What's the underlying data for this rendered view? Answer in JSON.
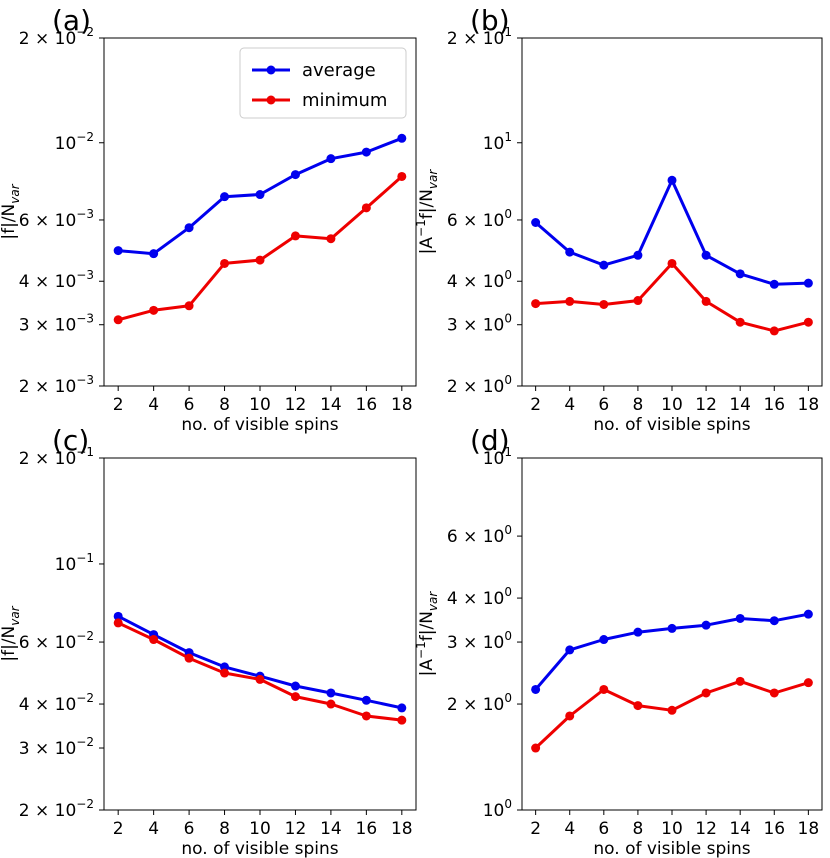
{
  "chart_data": [
    {
      "type": "line",
      "panel_label": "(a)",
      "scale": "log",
      "ylim": [
        0.002,
        0.02
      ],
      "x": [
        2,
        4,
        6,
        8,
        10,
        12,
        14,
        16,
        18
      ],
      "xlabel": "no. of visible spins",
      "ylabel": "|f|/N_var",
      "ylabel_main": "|f|/N",
      "ylabel_sub": "var",
      "yticks": [
        {
          "value": 0.002,
          "mant": "2 × 10",
          "exp": "−3"
        },
        {
          "value": 0.003,
          "mant": "3 × 10",
          "exp": "−3"
        },
        {
          "value": 0.004,
          "mant": "4 × 10",
          "exp": "−3"
        },
        {
          "value": 0.006,
          "mant": "6 × 10",
          "exp": "−3"
        },
        {
          "value": 0.01,
          "mant": "10",
          "exp": "−2"
        },
        {
          "value": 0.02,
          "mant": "2 × 10",
          "exp": "−2"
        }
      ],
      "xticks": [
        "2",
        "4",
        "6",
        "8",
        "10",
        "12",
        "14",
        "16",
        "18"
      ],
      "legend": {
        "position": "top-right",
        "entries": [
          "average",
          "minimum"
        ]
      },
      "series": [
        {
          "name": "average",
          "color": "#0000ee",
          "values": [
            0.0049,
            0.0048,
            0.0057,
            0.007,
            0.0071,
            0.0081,
            0.009,
            0.0094,
            0.0103
          ]
        },
        {
          "name": "minimum",
          "color": "#ee0000",
          "values": [
            0.0031,
            0.0033,
            0.0034,
            0.0045,
            0.0046,
            0.0054,
            0.0053,
            0.0065,
            0.008
          ]
        }
      ]
    },
    {
      "type": "line",
      "panel_label": "(b)",
      "scale": "log",
      "ylim": [
        2,
        20
      ],
      "x": [
        2,
        4,
        6,
        8,
        10,
        12,
        14,
        16,
        18
      ],
      "xlabel": "no. of visible spins",
      "ylabel": "|A^-1 f|/N_var",
      "ylabel_main": "|A",
      "ylabel_sup": "−1",
      "ylabel_mid": "f|/N",
      "ylabel_sub": "var",
      "yticks": [
        {
          "value": 2,
          "mant": "2 × 10",
          "exp": "0"
        },
        {
          "value": 3,
          "mant": "3 × 10",
          "exp": "0"
        },
        {
          "value": 4,
          "mant": "4 × 10",
          "exp": "0"
        },
        {
          "value": 6,
          "mant": "6 × 10",
          "exp": "0"
        },
        {
          "value": 10,
          "mant": "10",
          "exp": "1"
        },
        {
          "value": 20,
          "mant": "2 × 10",
          "exp": "1"
        }
      ],
      "xticks": [
        "2",
        "4",
        "6",
        "8",
        "10",
        "12",
        "14",
        "16",
        "18"
      ],
      "series": [
        {
          "name": "average",
          "color": "#0000ee",
          "values": [
            5.9,
            4.85,
            4.45,
            4.75,
            7.8,
            4.75,
            4.2,
            3.92,
            3.95
          ]
        },
        {
          "name": "minimum",
          "color": "#ee0000",
          "values": [
            3.45,
            3.5,
            3.43,
            3.52,
            4.5,
            3.5,
            3.05,
            2.88,
            3.05
          ]
        }
      ]
    },
    {
      "type": "line",
      "panel_label": "(c)",
      "scale": "log",
      "ylim": [
        0.02,
        0.2
      ],
      "x": [
        2,
        4,
        6,
        8,
        10,
        12,
        14,
        16,
        18
      ],
      "xlabel": "no. of visible spins",
      "ylabel": "|f|/N_var",
      "ylabel_main": "|f|/N",
      "ylabel_sub": "var",
      "yticks": [
        {
          "value": 0.02,
          "mant": "2 × 10",
          "exp": "−2"
        },
        {
          "value": 0.03,
          "mant": "3 × 10",
          "exp": "−2"
        },
        {
          "value": 0.04,
          "mant": "4 × 10",
          "exp": "−2"
        },
        {
          "value": 0.06,
          "mant": "6 × 10",
          "exp": "−2"
        },
        {
          "value": 0.1,
          "mant": "10",
          "exp": "−1"
        },
        {
          "value": 0.2,
          "mant": "2 × 10",
          "exp": "−1"
        }
      ],
      "xticks": [
        "2",
        "4",
        "6",
        "8",
        "10",
        "12",
        "14",
        "16",
        "18"
      ],
      "series": [
        {
          "name": "average",
          "color": "#0000ee",
          "values": [
            0.071,
            0.063,
            0.056,
            0.051,
            0.048,
            0.045,
            0.043,
            0.041,
            0.039
          ]
        },
        {
          "name": "minimum",
          "color": "#ee0000",
          "values": [
            0.068,
            0.061,
            0.054,
            0.049,
            0.047,
            0.042,
            0.04,
            0.037,
            0.036
          ]
        }
      ]
    },
    {
      "type": "line",
      "panel_label": "(d)",
      "scale": "log",
      "ylim": [
        1,
        10
      ],
      "x": [
        2,
        4,
        6,
        8,
        10,
        12,
        14,
        16,
        18
      ],
      "xlabel": "no. of visible spins",
      "ylabel": "|A^-1 f|/N_var",
      "ylabel_main": "|A",
      "ylabel_sup": "−1",
      "ylabel_mid": "f|/N",
      "ylabel_sub": "var",
      "yticks": [
        {
          "value": 1,
          "mant": "10",
          "exp": "0"
        },
        {
          "value": 2,
          "mant": "2 × 10",
          "exp": "0"
        },
        {
          "value": 3,
          "mant": "3 × 10",
          "exp": "0"
        },
        {
          "value": 4,
          "mant": "4 × 10",
          "exp": "0"
        },
        {
          "value": 6,
          "mant": "6 × 10",
          "exp": "0"
        },
        {
          "value": 10,
          "mant": "10",
          "exp": "1"
        }
      ],
      "xticks": [
        "2",
        "4",
        "6",
        "8",
        "10",
        "12",
        "14",
        "16",
        "18"
      ],
      "series": [
        {
          "name": "average",
          "color": "#0000ee",
          "values": [
            2.2,
            2.85,
            3.05,
            3.2,
            3.28,
            3.35,
            3.5,
            3.45,
            3.6
          ]
        },
        {
          "name": "minimum",
          "color": "#ee0000",
          "values": [
            1.5,
            1.85,
            2.2,
            1.98,
            1.92,
            2.15,
            2.32,
            2.15,
            2.3
          ]
        }
      ]
    }
  ]
}
